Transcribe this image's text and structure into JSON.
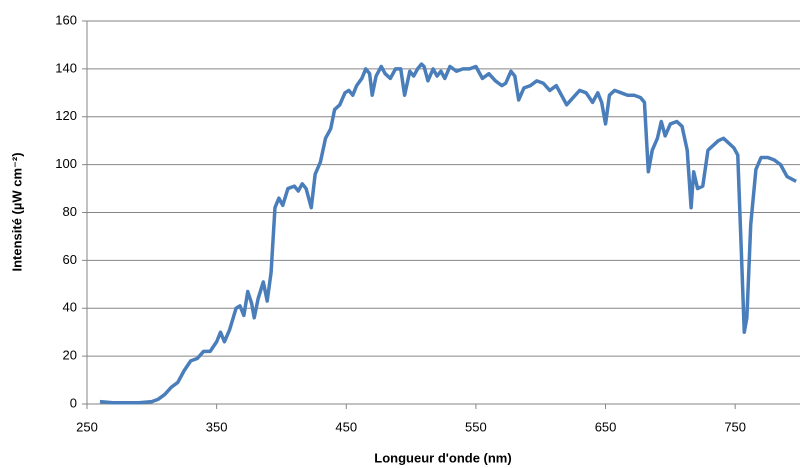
{
  "chart_data": {
    "type": "line",
    "x_label": "Longueur d'onde (nm)",
    "y_label": "Intensité (µW cm⁻²)",
    "xlim": [
      250,
      800
    ],
    "xticks": [
      250,
      350,
      450,
      550,
      650,
      750
    ],
    "ylim": [
      0,
      160
    ],
    "yticks": [
      0,
      20,
      40,
      60,
      80,
      100,
      120,
      140,
      160
    ],
    "grid": true,
    "x": [
      260,
      270,
      280,
      290,
      300,
      305,
      310,
      315,
      320,
      325,
      330,
      335,
      340,
      345,
      350,
      353,
      356,
      360,
      365,
      368,
      371,
      374,
      377,
      379,
      382,
      386,
      389,
      392,
      395,
      398,
      401,
      405,
      410,
      413,
      416,
      419,
      423,
      426,
      430,
      434,
      438,
      441,
      445,
      449,
      452,
      455,
      458,
      462,
      465,
      468,
      470,
      473,
      477,
      480,
      484,
      488,
      492,
      495,
      499,
      502,
      505,
      508,
      510,
      513,
      517,
      520,
      523,
      526,
      530,
      535,
      540,
      545,
      550,
      555,
      560,
      565,
      570,
      573,
      577,
      580,
      583,
      587,
      592,
      597,
      602,
      607,
      612,
      617,
      620,
      625,
      630,
      635,
      640,
      644,
      647,
      650,
      653,
      657,
      662,
      667,
      672,
      677,
      680,
      683,
      686,
      690,
      693,
      696,
      700,
      705,
      709,
      713,
      716,
      718,
      721,
      725,
      729,
      733,
      737,
      741,
      745,
      749,
      752,
      755,
      757,
      759,
      762,
      766,
      770,
      775,
      780,
      785,
      790,
      797
    ],
    "series": [
      {
        "color": "#4a7ebb",
        "values": [
          1,
          0.5,
          0.5,
          0.5,
          1,
          2,
          4,
          7,
          9,
          14,
          18,
          19,
          22,
          22,
          26,
          30,
          26,
          31,
          40,
          41,
          37,
          47,
          42,
          36,
          44,
          51,
          43,
          55,
          82,
          86,
          83,
          90,
          91,
          89,
          92,
          90,
          82,
          96,
          101,
          111,
          115,
          123,
          125,
          130,
          131,
          129,
          133,
          136,
          140,
          138,
          129,
          137,
          141,
          138,
          136,
          140,
          140,
          129,
          139,
          137,
          140,
          142,
          141,
          135,
          140,
          137,
          139,
          136,
          141,
          139,
          140,
          140,
          141,
          136,
          138,
          135,
          133,
          134,
          139,
          137,
          127,
          132,
          133,
          135,
          134,
          131,
          133,
          128,
          125,
          128,
          131,
          130,
          126,
          130,
          126,
          117,
          129,
          131,
          130,
          129,
          129,
          128,
          126,
          97,
          106,
          111,
          118,
          112,
          117,
          118,
          116,
          106,
          82,
          97,
          90,
          91,
          106,
          108,
          110,
          111,
          109,
          107,
          104,
          60,
          30,
          36,
          75,
          98,
          103,
          103,
          102,
          100,
          95,
          93
        ]
      }
    ]
  }
}
